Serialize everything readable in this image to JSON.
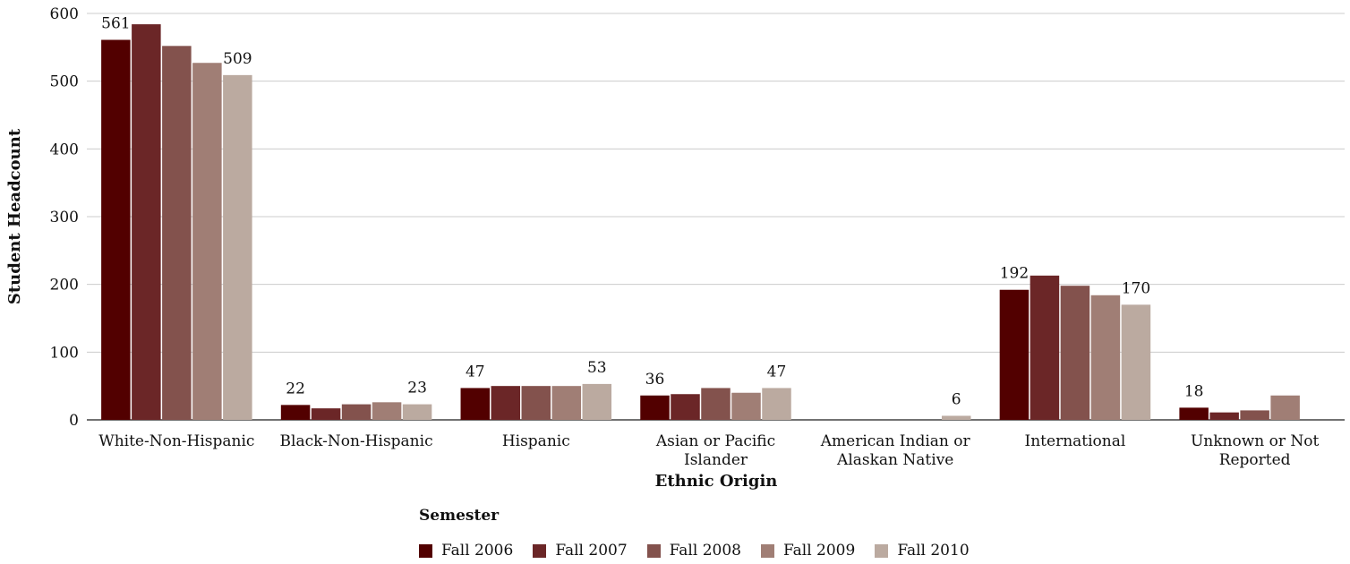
{
  "chart_data": {
    "type": "bar",
    "title": "",
    "xlabel": "Ethnic Origin",
    "ylabel": "Student Headcount",
    "ylim": [
      0,
      600
    ],
    "yticks": [
      0,
      100,
      200,
      300,
      400,
      500,
      600
    ],
    "grid": true,
    "legend_title": "Semester",
    "legend_position": "bottom",
    "categories": [
      [
        "White-Non-Hispanic"
      ],
      [
        "Black-Non-Hispanic"
      ],
      [
        "Hispanic"
      ],
      [
        "Asian or Pacific",
        "Islander"
      ],
      [
        "American Indian or",
        "Alaskan Native"
      ],
      [
        "International"
      ],
      [
        "Unknown or Not",
        "Reported"
      ]
    ],
    "series": [
      {
        "name": "Fall 2006",
        "color": "#520000",
        "values": [
          561,
          22,
          47,
          36,
          0,
          192,
          18
        ]
      },
      {
        "name": "Fall 2007",
        "color": "#6b2627",
        "values": [
          584,
          17,
          50,
          38,
          0,
          213,
          11
        ]
      },
      {
        "name": "Fall 2008",
        "color": "#83524d",
        "values": [
          552,
          23,
          50,
          47,
          0,
          198,
          14
        ]
      },
      {
        "name": "Fall 2009",
        "color": "#a07e75",
        "values": [
          527,
          26,
          50,
          40,
          0,
          184,
          36
        ]
      },
      {
        "name": "Fall 2010",
        "color": "#bbaaa0",
        "values": [
          509,
          23,
          53,
          47,
          6,
          170,
          null
        ]
      }
    ],
    "data_labels": [
      {
        "category": 0,
        "series": 0,
        "text": "561"
      },
      {
        "category": 0,
        "series": 4,
        "text": "509"
      },
      {
        "category": 1,
        "series": 0,
        "text": "22"
      },
      {
        "category": 1,
        "series": 4,
        "text": "23"
      },
      {
        "category": 2,
        "series": 0,
        "text": "47"
      },
      {
        "category": 2,
        "series": 4,
        "text": "53"
      },
      {
        "category": 3,
        "series": 0,
        "text": "36"
      },
      {
        "category": 3,
        "series": 4,
        "text": "47"
      },
      {
        "category": 4,
        "series": 4,
        "text": "6"
      },
      {
        "category": 5,
        "series": 0,
        "text": "192"
      },
      {
        "category": 5,
        "series": 4,
        "text": "170"
      },
      {
        "category": 6,
        "series": 0,
        "text": "18"
      }
    ]
  }
}
